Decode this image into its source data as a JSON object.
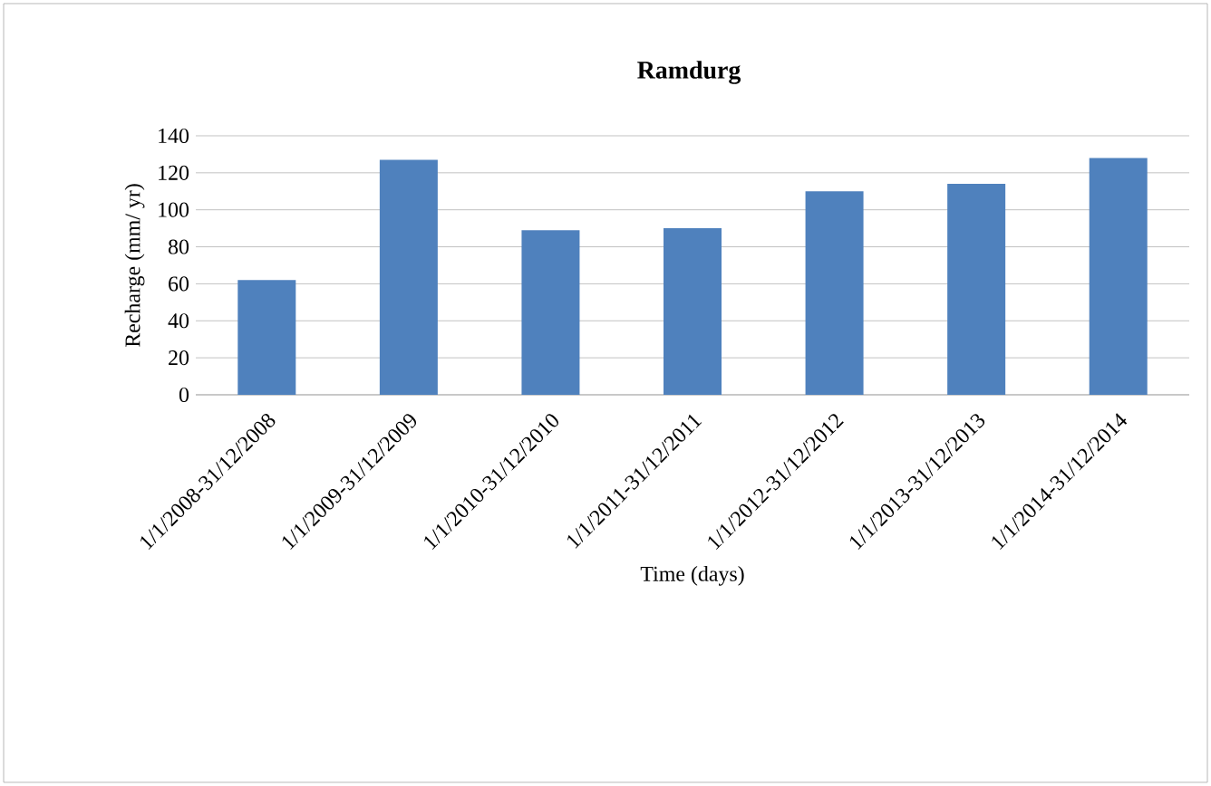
{
  "chart_data": {
    "type": "bar",
    "title": "Ramdurg",
    "xlabel": "Time (days)",
    "ylabel": "Recharge (mm/ yr)",
    "categories": [
      "1/1/2008-31/12/2008",
      "1/1/2009-31/12/2009",
      "1/1/2010-31/12/2010",
      "1/1/2011-31/12/2011",
      "1/1/2012-31/12/2012",
      "1/1/2013-31/12/2013",
      "1/1/2014-31/12/2014"
    ],
    "values": [
      62,
      127,
      89,
      90,
      110,
      114,
      128
    ],
    "color": "#4f81bd",
    "ylim": [
      0,
      140
    ],
    "yticks": [
      0,
      20,
      40,
      60,
      80,
      100,
      120,
      140
    ],
    "grid": "y"
  }
}
